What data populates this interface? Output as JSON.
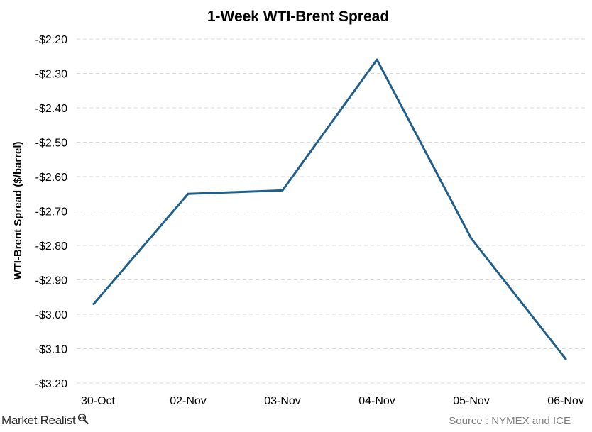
{
  "chart_data": {
    "type": "line",
    "title": "1-Week WTI-Brent Spread",
    "ylabel": "WTI-Brent Spread ($/barrel)",
    "xlabel": "",
    "categories": [
      "30-Oct",
      "02-Nov",
      "03-Nov",
      "04-Nov",
      "05-Nov",
      "06-Nov"
    ],
    "series": [
      {
        "values": [
          -2.97,
          -2.65,
          -2.64,
          -2.26,
          -2.78,
          -3.13
        ],
        "color": "#1f5f8b"
      }
    ],
    "ylim": [
      -3.2,
      -2.2
    ],
    "yticks": [
      -2.2,
      -2.3,
      -2.4,
      -2.5,
      -2.6,
      -2.7,
      -2.8,
      -2.9,
      -3.0,
      -3.1,
      -3.2
    ],
    "ytick_labels": [
      "-$2.20",
      "-$2.30",
      "-$2.40",
      "-$2.50",
      "-$2.60",
      "-$2.70",
      "-$2.80",
      "-$2.90",
      "-$3.00",
      "-$3.10",
      "-$3.20"
    ],
    "grid": true,
    "grid_style": "dashed horizontal",
    "legend": "none"
  },
  "footer": {
    "brand": "Market Realist",
    "brand_icon": "magnifier-icon",
    "source": "Source : NYMEX and ICE"
  }
}
